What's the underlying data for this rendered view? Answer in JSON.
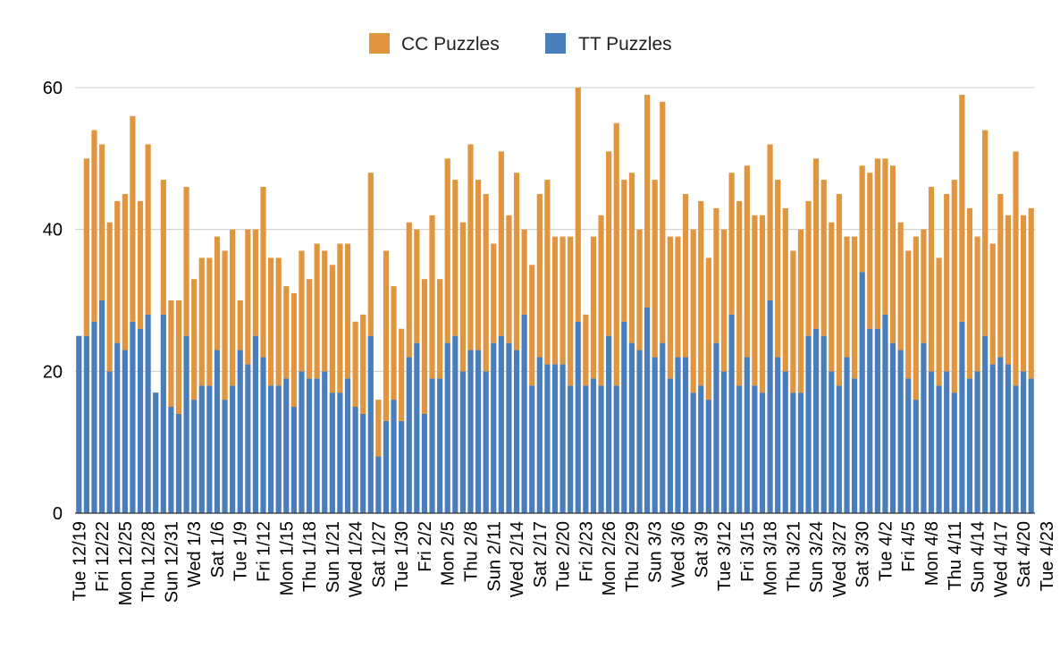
{
  "chart_data": {
    "type": "bar",
    "stacked": true,
    "title": "",
    "xlabel": "",
    "ylabel": "",
    "ylim": [
      0,
      60
    ],
    "yticks": [
      0,
      20,
      40,
      60
    ],
    "grid": true,
    "legend_position": "top-center",
    "tick_labels": [
      "Tue 12/19",
      "Fri 12/22",
      "Mon 12/25",
      "Thu 12/28",
      "Sun 12/31",
      "Wed 1/3",
      "Sat 1/6",
      "Tue 1/9",
      "Fri 1/12",
      "Mon 1/15",
      "Thu 1/18",
      "Sun 1/21",
      "Wed 1/24",
      "Sat 1/27",
      "Tue 1/30",
      "Fri 2/2",
      "Mon 2/5",
      "Thu 2/8",
      "Sun 2/11",
      "Wed 2/14",
      "Sat 2/17",
      "Tue 2/20",
      "Fri 2/23",
      "Mon 2/26",
      "Thu 2/29",
      "Sun 3/3",
      "Wed 3/6",
      "Sat 3/9",
      "Tue 3/12",
      "Fri 3/15",
      "Mon 3/18",
      "Thu 3/21",
      "Sun 3/24",
      "Wed 3/27",
      "Sat 3/30",
      "Tue 4/2",
      "Fri 4/5",
      "Mon 4/8",
      "Thu 4/11",
      "Sun 4/14",
      "Wed 4/17",
      "Sat 4/20",
      "Tue 4/23"
    ],
    "series": [
      {
        "name": "TT Puzzles",
        "color": "#4a7ebb",
        "values": [
          25,
          25,
          27,
          30,
          20,
          24,
          23,
          27,
          26,
          28,
          17,
          28,
          15,
          14,
          25,
          16,
          18,
          18,
          23,
          16,
          18,
          23,
          21,
          25,
          22,
          18,
          18,
          19,
          15,
          20,
          19,
          19,
          20,
          17,
          17,
          19,
          15,
          14,
          25,
          8,
          13,
          16,
          13,
          22,
          24,
          14,
          19,
          19,
          24,
          25,
          20,
          23,
          23,
          20,
          24,
          25,
          24,
          23,
          28,
          18,
          22,
          21,
          21,
          21,
          18,
          27,
          18,
          19,
          18,
          25,
          18,
          27,
          24,
          23,
          29,
          22,
          24,
          19,
          22,
          22,
          17,
          18,
          16,
          24,
          20,
          28,
          18,
          22,
          18,
          17,
          30,
          22,
          20,
          17,
          17,
          25,
          26,
          25,
          20,
          18,
          22,
          19,
          34,
          26,
          26,
          28,
          24,
          23,
          19,
          16,
          24,
          20,
          18,
          20,
          17,
          27,
          19,
          20,
          25,
          21,
          22,
          21,
          18,
          20,
          19
        ]
      },
      {
        "name": "CC Puzzles",
        "color": "#e0953e",
        "values": [
          0,
          25,
          27,
          22,
          21,
          20,
          22,
          29,
          18,
          24,
          0,
          19,
          15,
          16,
          21,
          17,
          18,
          18,
          16,
          21,
          22,
          7,
          19,
          15,
          24,
          18,
          18,
          13,
          16,
          17,
          14,
          19,
          17,
          18,
          21,
          19,
          12,
          14,
          23,
          8,
          24,
          16,
          13,
          19,
          16,
          19,
          23,
          14,
          26,
          22,
          21,
          29,
          24,
          25,
          14,
          26,
          18,
          25,
          12,
          17,
          23,
          26,
          18,
          18,
          21,
          33,
          10,
          20,
          24,
          26,
          37,
          20,
          24,
          17,
          30,
          25,
          34,
          20,
          17,
          23,
          23,
          26,
          20,
          19,
          20,
          20,
          26,
          27,
          24,
          25,
          22,
          25,
          23,
          20,
          23,
          19,
          24,
          22,
          21,
          27,
          17,
          20,
          15,
          22,
          24,
          22,
          25,
          18,
          18,
          23,
          16,
          26,
          18,
          25,
          30,
          32,
          24,
          19,
          29,
          17,
          23,
          21,
          33,
          22,
          24
        ]
      }
    ]
  }
}
